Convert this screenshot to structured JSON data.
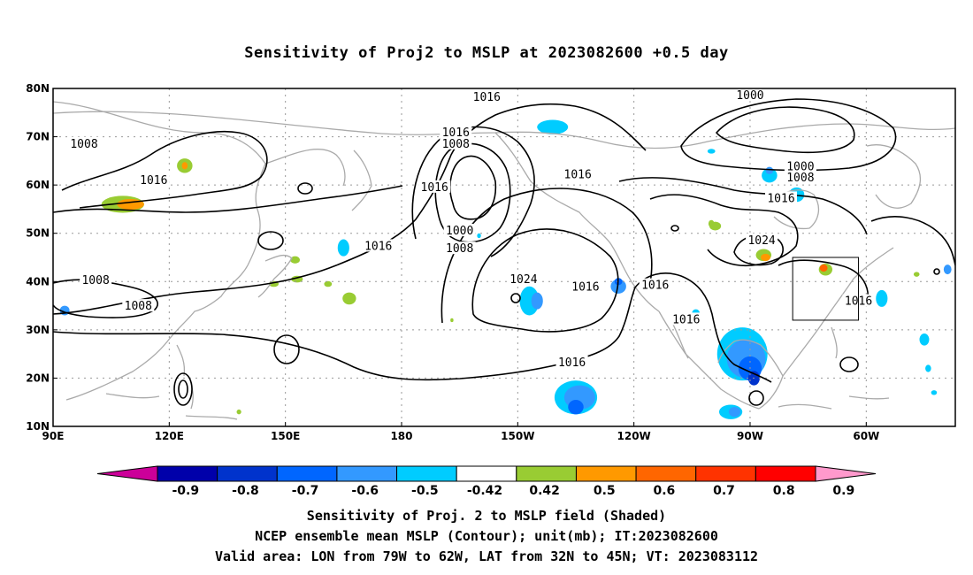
{
  "title": "Sensitivity of Proj2 to MSLP at 2023082600 +0.5 day",
  "map": {
    "lon_ticks": [
      "90E",
      "120E",
      "150E",
      "180",
      "150W",
      "120W",
      "90W",
      "60W"
    ],
    "lat_ticks": [
      "80N",
      "70N",
      "60N",
      "50N",
      "40N",
      "30N",
      "20N",
      "10N"
    ],
    "lon_range_deg": [
      90,
      323
    ],
    "lat_range_deg": [
      10,
      80
    ],
    "grid": "dotted",
    "coastline_color": "#aaaaaa",
    "contour_color": "#000000",
    "contour_labels": [
      {
        "text": "1016",
        "lon": 202,
        "lat": 78.2
      },
      {
        "text": "1000",
        "lon": 270,
        "lat": 78.5
      },
      {
        "text": "1008",
        "lon": 98,
        "lat": 68.5
      },
      {
        "text": "1016",
        "lon": 194,
        "lat": 70.8
      },
      {
        "text": "1008",
        "lon": 194,
        "lat": 68.5
      },
      {
        "text": "1000",
        "lon": 283,
        "lat": 63.8
      },
      {
        "text": "1016",
        "lon": 116,
        "lat": 60.9
      },
      {
        "text": "1008",
        "lon": 283,
        "lat": 61.5
      },
      {
        "text": "1016",
        "lon": 188.5,
        "lat": 59.5
      },
      {
        "text": "1016",
        "lon": 225.5,
        "lat": 62.1
      },
      {
        "text": "1016",
        "lon": 278,
        "lat": 57.2
      },
      {
        "text": "1000",
        "lon": 195,
        "lat": 50.5
      },
      {
        "text": "1024",
        "lon": 273,
        "lat": 48.5
      },
      {
        "text": "1016",
        "lon": 174,
        "lat": 47.3
      },
      {
        "text": "1008",
        "lon": 195,
        "lat": 46.8
      },
      {
        "text": "1008",
        "lon": 101,
        "lat": 40.2
      },
      {
        "text": "1024",
        "lon": 211.5,
        "lat": 40.4
      },
      {
        "text": "1016",
        "lon": 227.5,
        "lat": 38.9
      },
      {
        "text": "1016",
        "lon": 245.5,
        "lat": 39.2
      },
      {
        "text": "1008",
        "lon": 112,
        "lat": 34.9
      },
      {
        "text": "1016",
        "lon": 298,
        "lat": 35.9
      },
      {
        "text": "1016",
        "lon": 253.5,
        "lat": 32.1
      },
      {
        "text": "1016",
        "lon": 224,
        "lat": 23.2
      }
    ],
    "shaded": [
      {
        "lon": 219,
        "lat": 72,
        "w": 8,
        "h": 3,
        "color": "#00ccff"
      },
      {
        "lon": 275,
        "lat": 62,
        "w": 4,
        "h": 3,
        "color": "#00ccff"
      },
      {
        "lon": 275,
        "lat": 63,
        "w": 2,
        "h": 1.5,
        "color": "#3399ff"
      },
      {
        "lon": 282,
        "lat": 58,
        "w": 4,
        "h": 3,
        "color": "#00ccff"
      },
      {
        "lon": 108,
        "lat": 56,
        "w": 11,
        "h": 3.5,
        "color": "#99cc33"
      },
      {
        "lon": 110,
        "lat": 56,
        "w": 7,
        "h": 2.2,
        "color": "#ff9900"
      },
      {
        "lon": 124,
        "lat": 64,
        "w": 4,
        "h": 3,
        "color": "#99cc33"
      },
      {
        "lon": 124,
        "lat": 64,
        "w": 1.5,
        "h": 1.5,
        "color": "#ff9900"
      },
      {
        "lon": 152.5,
        "lat": 44.5,
        "w": 2.5,
        "h": 1.5,
        "color": "#99cc33"
      },
      {
        "lon": 153,
        "lat": 40.5,
        "w": 3,
        "h": 1.4,
        "color": "#99cc33"
      },
      {
        "lon": 147,
        "lat": 39.5,
        "w": 2.5,
        "h": 1.2,
        "color": "#99cc33"
      },
      {
        "lon": 161,
        "lat": 39.5,
        "w": 2,
        "h": 1.2,
        "color": "#99cc33"
      },
      {
        "lon": 166.5,
        "lat": 36.5,
        "w": 3.5,
        "h": 2.5,
        "color": "#99cc33"
      },
      {
        "lon": 165,
        "lat": 47,
        "w": 3,
        "h": 3.5,
        "color": "#00ccff"
      },
      {
        "lon": 93,
        "lat": 34,
        "w": 2.5,
        "h": 2,
        "color": "#3399ff"
      },
      {
        "lon": 213,
        "lat": 36,
        "w": 5,
        "h": 6,
        "color": "#00ccff"
      },
      {
        "lon": 215,
        "lat": 36,
        "w": 3,
        "h": 3.5,
        "color": "#3399ff"
      },
      {
        "lon": 236,
        "lat": 39,
        "w": 4,
        "h": 3,
        "color": "#3399ff"
      },
      {
        "lon": 236,
        "lat": 40,
        "w": 2,
        "h": 1.5,
        "color": "#0066ff"
      },
      {
        "lon": 261,
        "lat": 51.5,
        "w": 3,
        "h": 1.8,
        "color": "#99cc33"
      },
      {
        "lon": 273.5,
        "lat": 45.5,
        "w": 4,
        "h": 2.5,
        "color": "#99cc33"
      },
      {
        "lon": 274,
        "lat": 45,
        "w": 2.5,
        "h": 1.5,
        "color": "#ff9900"
      },
      {
        "lon": 289.5,
        "lat": 42.5,
        "w": 3.5,
        "h": 2.5,
        "color": "#99cc33"
      },
      {
        "lon": 289,
        "lat": 42.8,
        "w": 2,
        "h": 1.5,
        "color": "#ff6600"
      },
      {
        "lon": 304,
        "lat": 36.5,
        "w": 3,
        "h": 3.5,
        "color": "#00ccff"
      },
      {
        "lon": 321,
        "lat": 42.5,
        "w": 2,
        "h": 2,
        "color": "#3399ff"
      },
      {
        "lon": 313,
        "lat": 41.5,
        "w": 1.5,
        "h": 1,
        "color": "#99cc33"
      },
      {
        "lon": 256,
        "lat": 33.5,
        "w": 2,
        "h": 1.5,
        "color": "#00ccff"
      },
      {
        "lon": 268,
        "lat": 25,
        "w": 13,
        "h": 11,
        "color": "#00ccff"
      },
      {
        "lon": 269,
        "lat": 24,
        "w": 10,
        "h": 8,
        "color": "#3399ff"
      },
      {
        "lon": 270,
        "lat": 22,
        "w": 6,
        "h": 5,
        "color": "#0066ff"
      },
      {
        "lon": 271,
        "lat": 20,
        "w": 3,
        "h": 3,
        "color": "#0033cc"
      },
      {
        "lon": 265,
        "lat": 13,
        "w": 6,
        "h": 3,
        "color": "#00ccff"
      },
      {
        "lon": 266,
        "lat": 13,
        "w": 3,
        "h": 2,
        "color": "#3399ff"
      },
      {
        "lon": 225,
        "lat": 16,
        "w": 11,
        "h": 7,
        "color": "#00ccff"
      },
      {
        "lon": 226,
        "lat": 16,
        "w": 8,
        "h": 5,
        "color": "#3399ff"
      },
      {
        "lon": 225,
        "lat": 14,
        "w": 4,
        "h": 3,
        "color": "#0066ff"
      },
      {
        "lon": 315,
        "lat": 28,
        "w": 2.5,
        "h": 2.5,
        "color": "#00ccff"
      },
      {
        "lon": 316,
        "lat": 22,
        "w": 1.5,
        "h": 1.5,
        "color": "#00ccff"
      },
      {
        "lon": 317.5,
        "lat": 17,
        "w": 1.5,
        "h": 1,
        "color": "#00ccff"
      },
      {
        "lon": 138,
        "lat": 13,
        "w": 1.2,
        "h": 1,
        "color": "#99cc33"
      },
      {
        "lon": 260,
        "lat": 52,
        "w": 1.5,
        "h": 1.5,
        "color": "#99cc33"
      },
      {
        "lon": 200,
        "lat": 49.5,
        "w": 1,
        "h": 1,
        "color": "#00ccff"
      },
      {
        "lon": 193,
        "lat": 32,
        "w": 0.8,
        "h": 0.8,
        "color": "#99cc33"
      },
      {
        "lon": 260,
        "lat": 67,
        "w": 2,
        "h": 1,
        "color": "#00ccff"
      }
    ],
    "valid_box": {
      "lon_min": 281,
      "lon_max": 298,
      "lat_min": 32,
      "lat_max": 45
    }
  },
  "colorbar": {
    "labels": [
      "-0.9",
      "-0.8",
      "-0.7",
      "-0.6",
      "-0.5",
      "-0.42",
      "0.42",
      "0.5",
      "0.6",
      "0.7",
      "0.8",
      "0.9"
    ],
    "colors": [
      "#0000aa",
      "#0033cc",
      "#0066ff",
      "#3399ff",
      "#00ccff",
      "#ffffff",
      "#99cc33",
      "#ff9900",
      "#ff6600",
      "#ff3300",
      "#ff0000"
    ],
    "under_color": "#cc0099",
    "over_color": "#ff99cc"
  },
  "captions": {
    "line1": "Sensitivity of Proj. 2 to MSLP field (Shaded)",
    "line2": "NCEP ensemble mean MSLP (Contour); unit(mb); IT:2023082600",
    "line3": "Valid area: LON from 79W to 62W, LAT from 32N to 45N; VT: 2023083112"
  }
}
